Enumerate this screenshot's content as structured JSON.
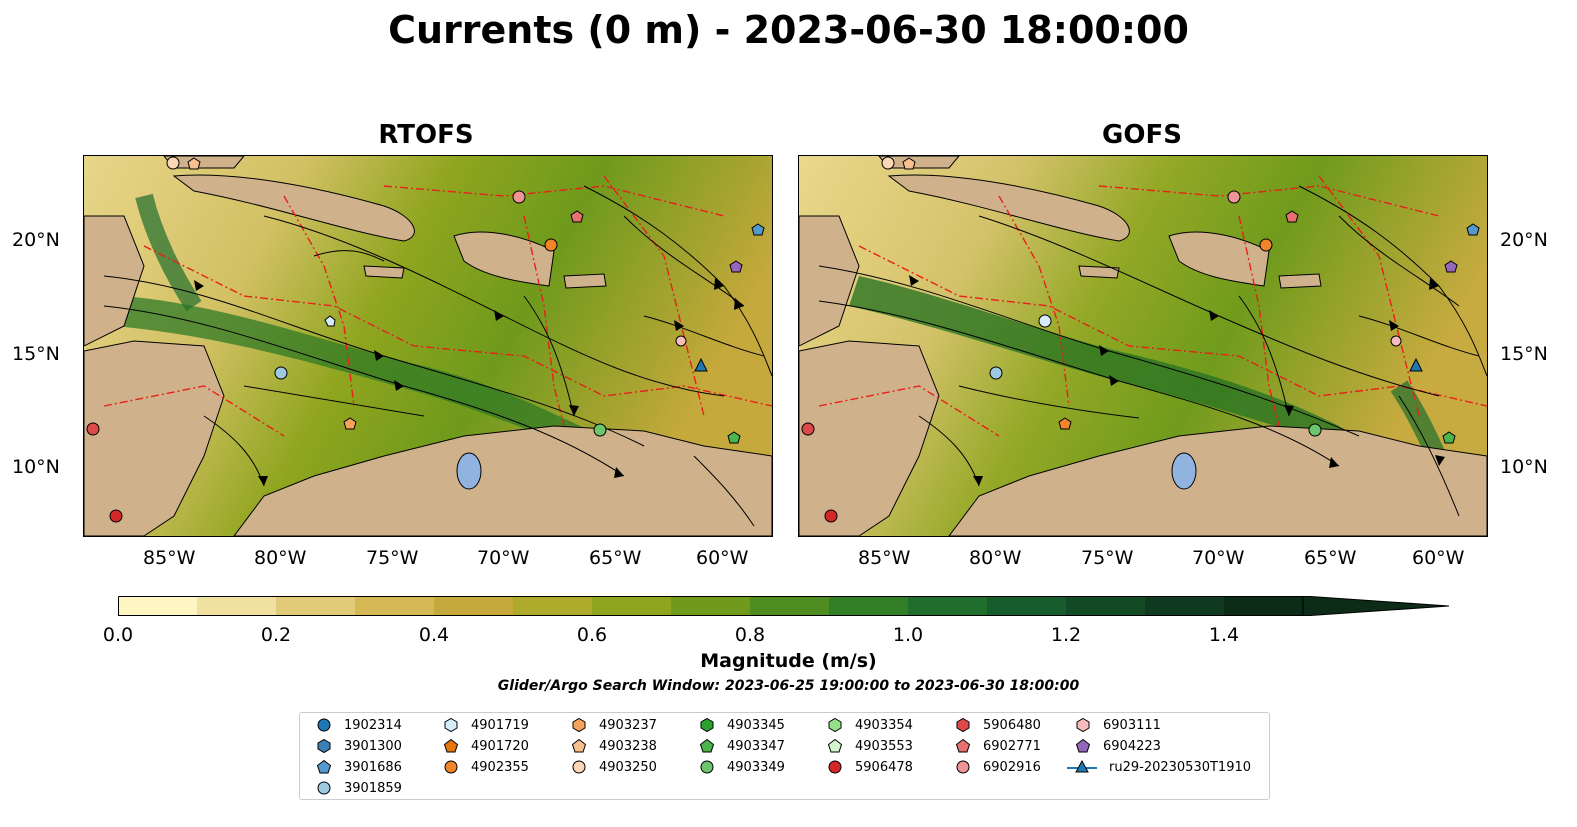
{
  "title": "Currents (0 m) - 2023-06-30 18:00:00",
  "panels": [
    {
      "name": "RTOFS"
    },
    {
      "name": "GOFS"
    }
  ],
  "longitude_ticks": [
    "85°W",
    "80°W",
    "75°W",
    "70°W",
    "65°W",
    "60°W"
  ],
  "latitude_ticks": [
    "20°N",
    "15°N",
    "10°N"
  ],
  "colorbar": {
    "title": "Magnitude (m/s)",
    "ticks": [
      "0.0",
      "0.2",
      "0.4",
      "0.6",
      "0.8",
      "1.0",
      "1.2",
      "1.4"
    ],
    "range": [
      0,
      1.5
    ],
    "extend": "max",
    "colors": [
      "#fdf6c3",
      "#f0e1a0",
      "#e2cb78",
      "#d4b855",
      "#c6a93c",
      "#aeaa2c",
      "#8fa51f",
      "#6f9a1c",
      "#4f8c21",
      "#327f28",
      "#1f6e2e",
      "#165c2c",
      "#124a26",
      "#103a20",
      "#0d2c18"
    ]
  },
  "search_window": "Glider/Argo Search Window: 2023-06-25 19:00:00 to 2023-06-30 18:00:00",
  "legend": [
    {
      "label": "1902314",
      "marker": "circle",
      "color": "#1f77b4"
    },
    {
      "label": "3901300",
      "marker": "hexagon",
      "color": "#3a7fb6"
    },
    {
      "label": "3901686",
      "marker": "pentagon",
      "color": "#5599cc"
    },
    {
      "label": "3901859",
      "marker": "circle",
      "color": "#9ecae1"
    },
    {
      "label": "4901719",
      "marker": "hexagon",
      "color": "#d6ecfa"
    },
    {
      "label": "4901720",
      "marker": "pentagon",
      "color": "#e6750f"
    },
    {
      "label": "4902355",
      "marker": "circle",
      "color": "#f2852a"
    },
    {
      "label": "4903237",
      "marker": "hexagon",
      "color": "#f5a25a"
    },
    {
      "label": "4903238",
      "marker": "pentagon",
      "color": "#f9c08f"
    },
    {
      "label": "4903250",
      "marker": "circle",
      "color": "#fdd6b5"
    },
    {
      "label": "4903345",
      "marker": "hexagon",
      "color": "#2ca02c"
    },
    {
      "label": "4903347",
      "marker": "pentagon",
      "color": "#4cb44c"
    },
    {
      "label": "4903349",
      "marker": "circle",
      "color": "#6cc46c"
    },
    {
      "label": "4903354",
      "marker": "hexagon",
      "color": "#98df8a"
    },
    {
      "label": "4903553",
      "marker": "pentagon",
      "color": "#d5f5cc"
    },
    {
      "label": "5906478",
      "marker": "circle",
      "color": "#d62728"
    },
    {
      "label": "5906480",
      "marker": "hexagon",
      "color": "#dc4a4a"
    },
    {
      "label": "6902771",
      "marker": "pentagon",
      "color": "#e87070"
    },
    {
      "label": "6902916",
      "marker": "circle",
      "color": "#f09595"
    },
    {
      "label": "6903111",
      "marker": "hexagon",
      "color": "#f7bcbc"
    },
    {
      "label": "6904223",
      "marker": "pentagon",
      "color": "#9467bd"
    },
    {
      "label": "ru29-20230530T1910",
      "marker": "triangle-line",
      "color": "#1f77b4"
    }
  ]
}
